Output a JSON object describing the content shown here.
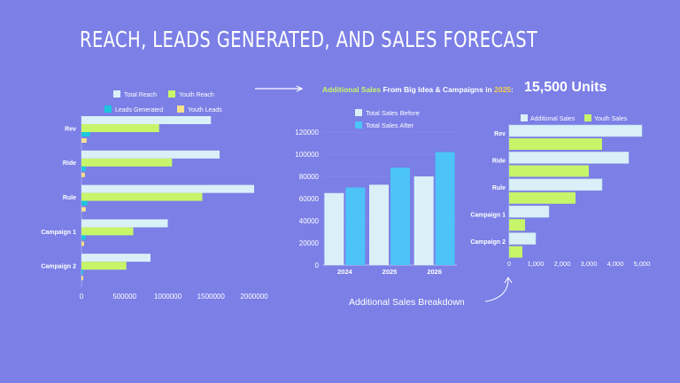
{
  "title": "REACH, LEADS GENERATED, AND SALES FORECAST",
  "headline": {
    "part1": "Additional Sales",
    "part2": " From Big Idea & Campaigns in ",
    "part3": "2025",
    "part4": ":"
  },
  "units": "15,500 Units",
  "caption": "Additional Sales Breakdown",
  "colors": {
    "background": "#7b7fe6",
    "total_reach": "#daf0f8",
    "youth_reach": "#c6f56a",
    "leads_generated": "#1cc6de",
    "youth_leads": "#f7e08a",
    "sales_before": "#daf0f8",
    "sales_after": "#4cc4f7"
  },
  "chart_data": [
    {
      "type": "bar",
      "orientation": "horizontal",
      "categories": [
        "Rev",
        "Ride",
        "Rule",
        "Campaign 1",
        "Campaign 2"
      ],
      "series": [
        {
          "name": "Total Reach",
          "values": [
            1500000,
            1600000,
            2000000,
            1000000,
            800000
          ]
        },
        {
          "name": "Youth Reach",
          "values": [
            900000,
            1050000,
            1400000,
            600000,
            520000
          ]
        },
        {
          "name": "Leads Generated",
          "values": [
            100000,
            50000,
            70000,
            50000,
            20000
          ]
        },
        {
          "name": "Youth Leads",
          "values": [
            60000,
            40000,
            50000,
            30000,
            10000
          ]
        }
      ],
      "xlim": [
        0,
        2000000
      ],
      "xticks": [
        "0",
        "500000",
        "1000000",
        "1500000",
        "2000000"
      ],
      "legend_position": "top"
    },
    {
      "type": "bar",
      "orientation": "vertical",
      "categories": [
        "2024",
        "2025",
        "2026"
      ],
      "series": [
        {
          "name": "Total Sales Before",
          "values": [
            65000,
            72500,
            80000
          ]
        },
        {
          "name": "Total Sales After",
          "values": [
            70000,
            88000,
            102000
          ]
        }
      ],
      "ylim": [
        0,
        120000
      ],
      "yticks": [
        "0",
        "20000",
        "40000",
        "60000",
        "80000",
        "100000",
        "120000"
      ],
      "legend_position": "top"
    },
    {
      "type": "bar",
      "orientation": "horizontal",
      "categories": [
        "Rev",
        "Ride",
        "Rule",
        "Campaign 1",
        "Campaign 2"
      ],
      "series": [
        {
          "name": "Additional Sales",
          "values": [
            5000,
            4500,
            3500,
            1500,
            1000
          ]
        },
        {
          "name": "Youth Sales",
          "values": [
            3500,
            3000,
            2500,
            600,
            500
          ]
        }
      ],
      "xlim": [
        0,
        5000
      ],
      "xticks": [
        "0",
        "1,000",
        "2,000",
        "3,000",
        "4,000",
        "5,000"
      ],
      "legend_position": "top"
    }
  ]
}
